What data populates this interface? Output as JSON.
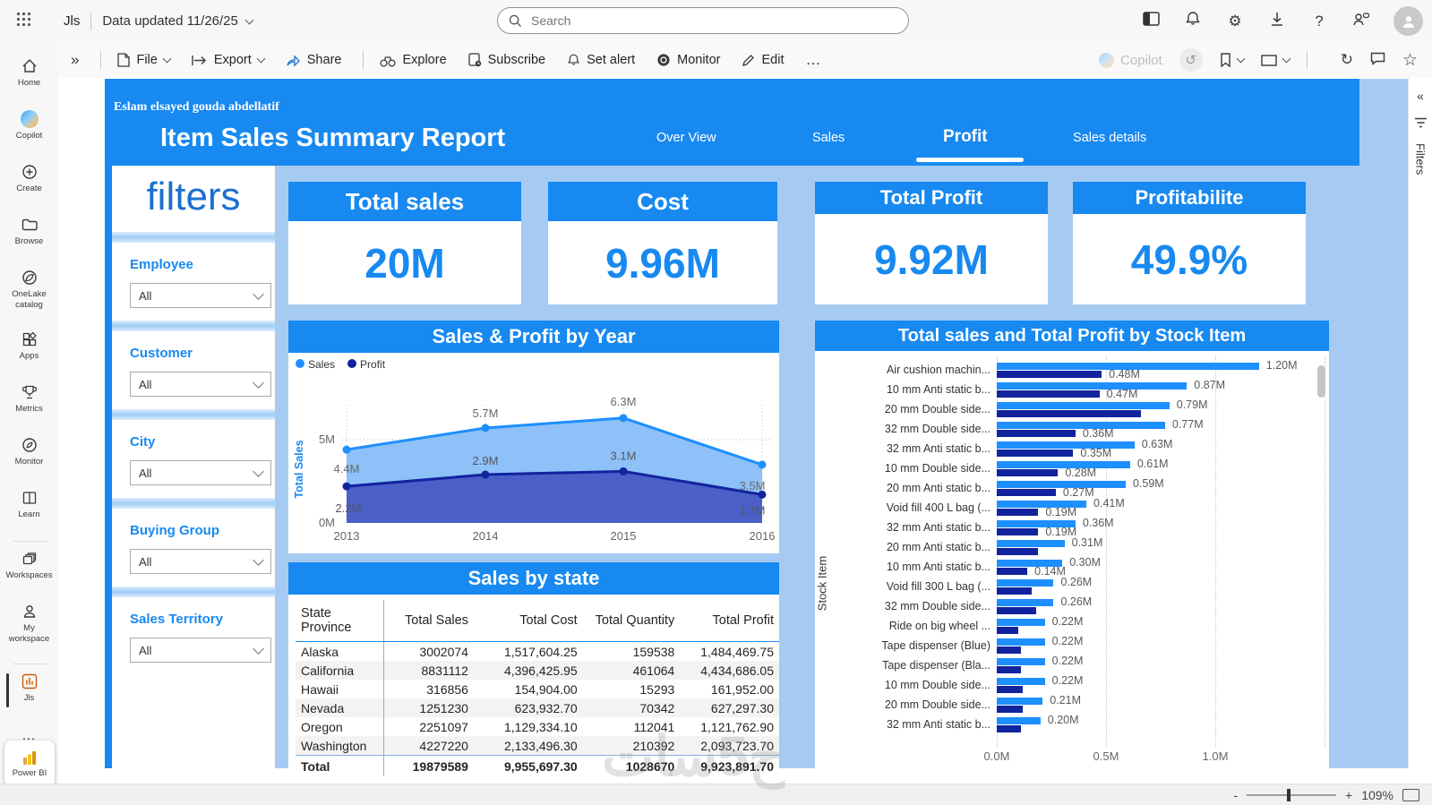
{
  "top_bar": {
    "workspace_short": "Jls",
    "data_updated": "Data updated 11/26/25",
    "search_placeholder": "Search"
  },
  "toolbar": {
    "file": "File",
    "export": "Export",
    "share": "Share",
    "explore": "Explore",
    "subscribe": "Subscribe",
    "set_alert": "Set alert",
    "monitor": "Monitor",
    "edit": "Edit",
    "copilot": "Copilot"
  },
  "icons": {
    "more": "…",
    "expand": "»",
    "collapse": "«",
    "gear": "⚙",
    "star": "☆",
    "refresh": "↻",
    "undo": "↺",
    "question": "?"
  },
  "nav": {
    "items": [
      {
        "label": "Home"
      },
      {
        "label": "Copilot"
      },
      {
        "label": "Create"
      },
      {
        "label": "Browse"
      },
      {
        "label": "OneLake catalog"
      },
      {
        "label": "Apps"
      },
      {
        "label": "Metrics"
      },
      {
        "label": "Monitor"
      },
      {
        "label": "Learn"
      },
      {
        "label": "Workspaces"
      },
      {
        "label": "My workspace"
      },
      {
        "label": "Jls"
      },
      {
        "label": "Power BI"
      }
    ]
  },
  "report": {
    "author": "Eslam elsayed gouda abdellatif",
    "title": "Item Sales Summary Report",
    "tabs": [
      {
        "label": "Over View"
      },
      {
        "label": "Sales"
      },
      {
        "label": "Profit",
        "active": true
      },
      {
        "label": "Sales details"
      }
    ],
    "filters": {
      "title": "filters",
      "sections": [
        {
          "label": "Employee",
          "value": "All"
        },
        {
          "label": "Customer",
          "value": "All"
        },
        {
          "label": "City",
          "value": "All"
        },
        {
          "label": "Buying Group",
          "value": "All"
        },
        {
          "label": "Sales Territory",
          "value": "All"
        }
      ]
    },
    "kpis": [
      {
        "title": "Total sales",
        "value": "20M"
      },
      {
        "title": "Cost",
        "value": "9.96M"
      },
      {
        "title": "Total Profit",
        "value": "9.92M"
      },
      {
        "title": "Profitabilite",
        "value": "49.9%"
      }
    ]
  },
  "chart_data": [
    {
      "type": "area",
      "title": "Sales & Profit by Year",
      "x": [
        "2013",
        "2014",
        "2015",
        "2016"
      ],
      "series": [
        {
          "name": "Sales",
          "values": [
            4.4,
            5.7,
            6.3,
            3.5
          ],
          "labels": [
            "4.4M",
            "5.7M",
            "6.3M",
            "3.5M"
          ],
          "color": "#1e8fff"
        },
        {
          "name": "Profit",
          "values": [
            2.2,
            2.9,
            3.1,
            1.7
          ],
          "labels": [
            "2.2M",
            "2.9M",
            "3.1M",
            "1.7M"
          ],
          "color": "#12239e"
        }
      ],
      "ylabel": "Total Sales",
      "yticks": [
        "0M",
        "5M"
      ],
      "ylim": [
        0,
        8
      ],
      "legend_position": "top-left",
      "grid": "dotted"
    },
    {
      "type": "table",
      "title": "Sales by state",
      "columns": [
        "State Province",
        "Total Sales",
        "Total Cost",
        "Total Quantity",
        "Total Profit"
      ],
      "rows": [
        [
          "Alaska",
          "3002074",
          "1,517,604.25",
          "159538",
          "1,484,469.75"
        ],
        [
          "California",
          "8831112",
          "4,396,425.95",
          "461064",
          "4,434,686.05"
        ],
        [
          "Hawaii",
          "316856",
          "154,904.00",
          "15293",
          "161,952.00"
        ],
        [
          "Nevada",
          "1251230",
          "623,932.70",
          "70342",
          "627,297.30"
        ],
        [
          "Oregon",
          "2251097",
          "1,129,334.10",
          "112041",
          "1,121,762.90"
        ],
        [
          "Washington",
          "4227220",
          "2,133,496.30",
          "210392",
          "2,093,723.70"
        ]
      ],
      "total_row": [
        "Total",
        "19879589",
        "9,955,697.30",
        "1028670",
        "9,923,891.70"
      ]
    },
    {
      "type": "bar",
      "title": "Total sales and Total Profit by Stock Item",
      "ylabel": "Stock Item",
      "series_names": [
        "Total sales",
        "Total Profit"
      ],
      "xticks": [
        "0.0M",
        "0.5M",
        "1.0M"
      ],
      "xlim": [
        0,
        1.5
      ],
      "items": [
        {
          "label": "Air cushion machin...",
          "sales": 1.2,
          "profit": 0.48,
          "sales_label": "1.20M",
          "profit_label": "0.48M"
        },
        {
          "label": "10 mm Anti static b...",
          "sales": 0.87,
          "profit": 0.47,
          "sales_label": "0.87M",
          "profit_label": "0.47M"
        },
        {
          "label": "20 mm Double side...",
          "sales": 0.79,
          "profit": 0.66,
          "sales_label": "0.79M",
          "profit_label": ""
        },
        {
          "label": "32 mm Double side...",
          "sales": 0.77,
          "profit": 0.36,
          "sales_label": "0.77M",
          "profit_label": "0.36M"
        },
        {
          "label": "32 mm Anti static b...",
          "sales": 0.63,
          "profit": 0.35,
          "sales_label": "0.63M",
          "profit_label": "0.35M"
        },
        {
          "label": "10 mm Double side...",
          "sales": 0.61,
          "profit": 0.28,
          "sales_label": "0.61M",
          "profit_label": "0.28M"
        },
        {
          "label": "20 mm Anti static b...",
          "sales": 0.59,
          "profit": 0.27,
          "sales_label": "0.59M",
          "profit_label": "0.27M"
        },
        {
          "label": "Void fill 400 L bag (...",
          "sales": 0.41,
          "profit": 0.19,
          "sales_label": "0.41M",
          "profit_label": "0.19M"
        },
        {
          "label": "32 mm Anti static b...",
          "sales": 0.36,
          "profit": 0.19,
          "sales_label": "0.36M",
          "profit_label": "0.19M"
        },
        {
          "label": "20 mm Anti static b...",
          "sales": 0.31,
          "profit": 0.19,
          "sales_label": "0.31M",
          "profit_label": ""
        },
        {
          "label": "10 mm Anti static b...",
          "sales": 0.3,
          "profit": 0.14,
          "sales_label": "0.30M",
          "profit_label": "0.14M"
        },
        {
          "label": "Void fill 300 L bag (...",
          "sales": 0.26,
          "profit": 0.16,
          "sales_label": "0.26M",
          "profit_label": ""
        },
        {
          "label": "32 mm Double side...",
          "sales": 0.26,
          "profit": 0.18,
          "sales_label": "0.26M",
          "profit_label": ""
        },
        {
          "label": "Ride on big wheel ...",
          "sales": 0.22,
          "profit": 0.1,
          "sales_label": "0.22M",
          "profit_label": ""
        },
        {
          "label": "Tape dispenser (Blue)",
          "sales": 0.22,
          "profit": 0.11,
          "sales_label": "0.22M",
          "profit_label": ""
        },
        {
          "label": "Tape dispenser (Bla...",
          "sales": 0.22,
          "profit": 0.11,
          "sales_label": "0.22M",
          "profit_label": ""
        },
        {
          "label": "10 mm Double side...",
          "sales": 0.22,
          "profit": 0.12,
          "sales_label": "0.22M",
          "profit_label": ""
        },
        {
          "label": "20 mm Double side...",
          "sales": 0.21,
          "profit": 0.12,
          "sales_label": "0.21M",
          "profit_label": ""
        },
        {
          "label": "32 mm Anti static b...",
          "sales": 0.2,
          "profit": 0.11,
          "sales_label": "0.20M",
          "profit_label": ""
        }
      ]
    }
  ],
  "ui": {
    "filters_pane": "Filters",
    "zoom_level": "109%",
    "watermark": "خ5سات"
  }
}
